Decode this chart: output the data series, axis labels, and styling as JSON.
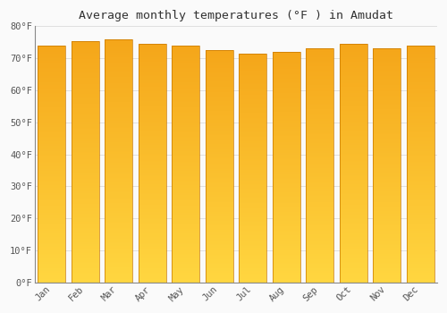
{
  "title": "Average monthly temperatures (°F ) in Amudat",
  "months": [
    "Jan",
    "Feb",
    "Mar",
    "Apr",
    "May",
    "Jun",
    "Jul",
    "Aug",
    "Sep",
    "Oct",
    "Nov",
    "Dec"
  ],
  "values": [
    74.0,
    75.5,
    76.0,
    74.5,
    74.0,
    72.5,
    71.5,
    72.0,
    73.0,
    74.5,
    73.0,
    74.0
  ],
  "ylim": [
    0,
    80
  ],
  "yticks": [
    0,
    10,
    20,
    30,
    40,
    50,
    60,
    70,
    80
  ],
  "bar_color_top": "#F5A800",
  "bar_color_bottom": "#FFD040",
  "bar_outline_color": "#C87800",
  "background_color": "#FAFAFA",
  "grid_color": "#E0E0E0",
  "title_fontsize": 9.5,
  "tick_fontsize": 7.5,
  "title_font": "monospace"
}
